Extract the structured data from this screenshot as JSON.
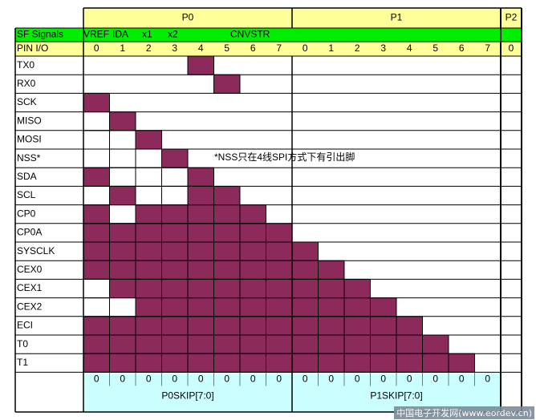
{
  "header": {
    "p0": "P0",
    "p1": "P1",
    "p2": "P2"
  },
  "signals_row": {
    "label": "SF Signals",
    "annotations": [
      "VREF",
      "IDA",
      "x1",
      "x2",
      "CNVSTR"
    ]
  },
  "pin_row": {
    "label": "PIN I/O",
    "p0_pins": [
      "0",
      "1",
      "2",
      "3",
      "4",
      "5",
      "6",
      "7"
    ],
    "p1_pins": [
      "0",
      "1",
      "2",
      "3",
      "4",
      "5",
      "6",
      "7"
    ],
    "p2_pins": [
      "0"
    ]
  },
  "rows": [
    {
      "label": "TX0",
      "filled": [
        4
      ]
    },
    {
      "label": "RX0",
      "filled": [
        5
      ]
    },
    {
      "label": "SCK",
      "filled": [
        0
      ]
    },
    {
      "label": "MISO",
      "filled": [
        1
      ]
    },
    {
      "label": "MOSI",
      "filled": [
        2
      ]
    },
    {
      "label": "NSS*",
      "filled": [
        3
      ]
    },
    {
      "label": "SDA",
      "filled": [
        0,
        4
      ]
    },
    {
      "label": "SCL",
      "filled": [
        1,
        4,
        5
      ]
    },
    {
      "label": "CP0",
      "filled": [
        0,
        2,
        3,
        4,
        5,
        6
      ]
    },
    {
      "label": "CP0A",
      "filled": [
        0,
        1,
        2,
        3,
        4,
        5,
        6,
        7
      ]
    },
    {
      "label": "SYSCLK",
      "filled": [
        0,
        1,
        2,
        3,
        4,
        5,
        6,
        7,
        8
      ]
    },
    {
      "label": "CEX0",
      "filled": [
        0,
        1,
        2,
        3,
        4,
        5,
        6,
        7,
        8,
        9
      ]
    },
    {
      "label": "CEX1",
      "filled": [
        1,
        2,
        3,
        4,
        5,
        6,
        7,
        8,
        9,
        10
      ]
    },
    {
      "label": "CEX2",
      "filled": [
        2,
        3,
        4,
        5,
        6,
        7,
        8,
        9,
        10,
        11
      ]
    },
    {
      "label": "ECI",
      "filled": [
        0,
        1,
        2,
        3,
        4,
        5,
        6,
        7,
        8,
        9,
        10,
        11,
        12
      ]
    },
    {
      "label": "T0",
      "filled": [
        0,
        1,
        2,
        3,
        4,
        5,
        6,
        7,
        8,
        9,
        10,
        11,
        12,
        13
      ]
    },
    {
      "label": "T1",
      "filled": [
        0,
        1,
        2,
        3,
        4,
        5,
        6,
        7,
        8,
        9,
        10,
        11,
        12,
        13,
        14
      ]
    }
  ],
  "note": "*NSS只在4线SPI方式下有引出脚",
  "skip": {
    "p0_values": [
      "0",
      "0",
      "0",
      "0",
      "0",
      "0",
      "0",
      "0"
    ],
    "p1_values": [
      "0",
      "0",
      "0",
      "0",
      "0",
      "0",
      "0",
      "0"
    ],
    "p0_label": "P0SKIP[7:0]",
    "p1_label": "P1SKIP[7:0]"
  },
  "watermark": "中国电子开发网(www.eordev.cn)",
  "colors": {
    "filled": "#8b2a5b",
    "header_yellow": "#ffff99",
    "signals_green": "#00ee00",
    "skip_cyan": "#ccffff",
    "grid": "#000000"
  }
}
